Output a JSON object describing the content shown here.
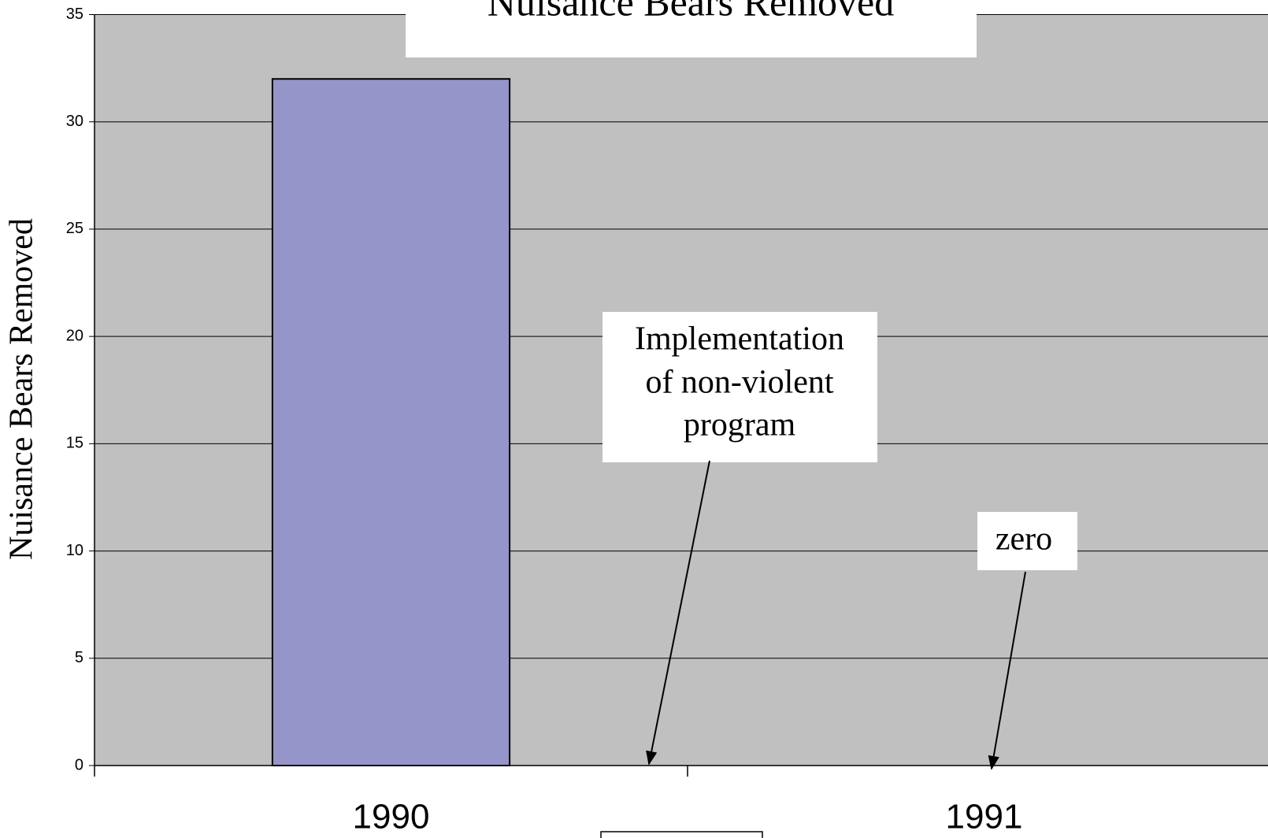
{
  "chart_data": {
    "type": "bar",
    "title": "Nuisance Bears Removed",
    "y_label": "Nuisance Bears Removed",
    "categories": [
      "1990",
      "1991"
    ],
    "values": [
      32,
      0
    ],
    "color": "#9595c9",
    "ylim": [
      0,
      35
    ],
    "yticks": [
      0,
      5,
      10,
      15,
      20,
      25,
      30,
      35
    ],
    "grid": true,
    "annotations": [
      {
        "lines": [
          "Implementation",
          "of non-violent",
          "program"
        ]
      },
      {
        "lines": [
          "zero"
        ]
      }
    ]
  }
}
